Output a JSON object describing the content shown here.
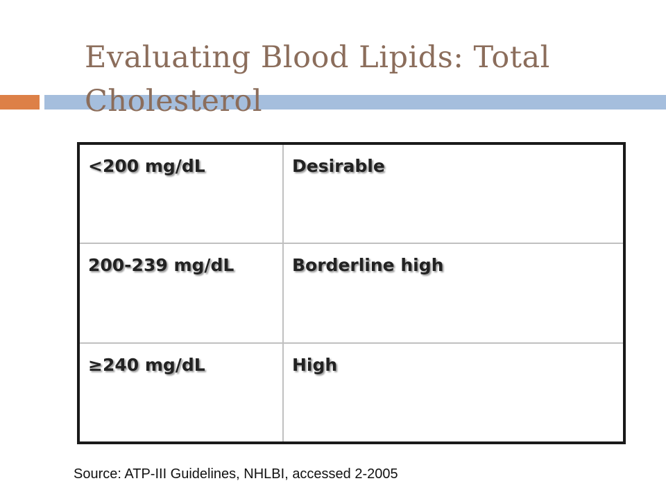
{
  "slide": {
    "title": "Evaluating Blood Lipids: Total Cholesterol",
    "accent_colors": {
      "title": "#8b6d5b",
      "bar_orange": "#dd8047",
      "bar_blue": "#95b3d7"
    }
  },
  "table": {
    "rows": [
      {
        "range": "<200 mg/dL",
        "category": "Desirable"
      },
      {
        "range": "200-239 mg/dL",
        "category": "Borderline high"
      },
      {
        "range": "≥240 mg/dL",
        "category": "High"
      }
    ]
  },
  "footer": {
    "source": "Source: ATP-III Guidelines, NHLBI, accessed 2-2005"
  }
}
